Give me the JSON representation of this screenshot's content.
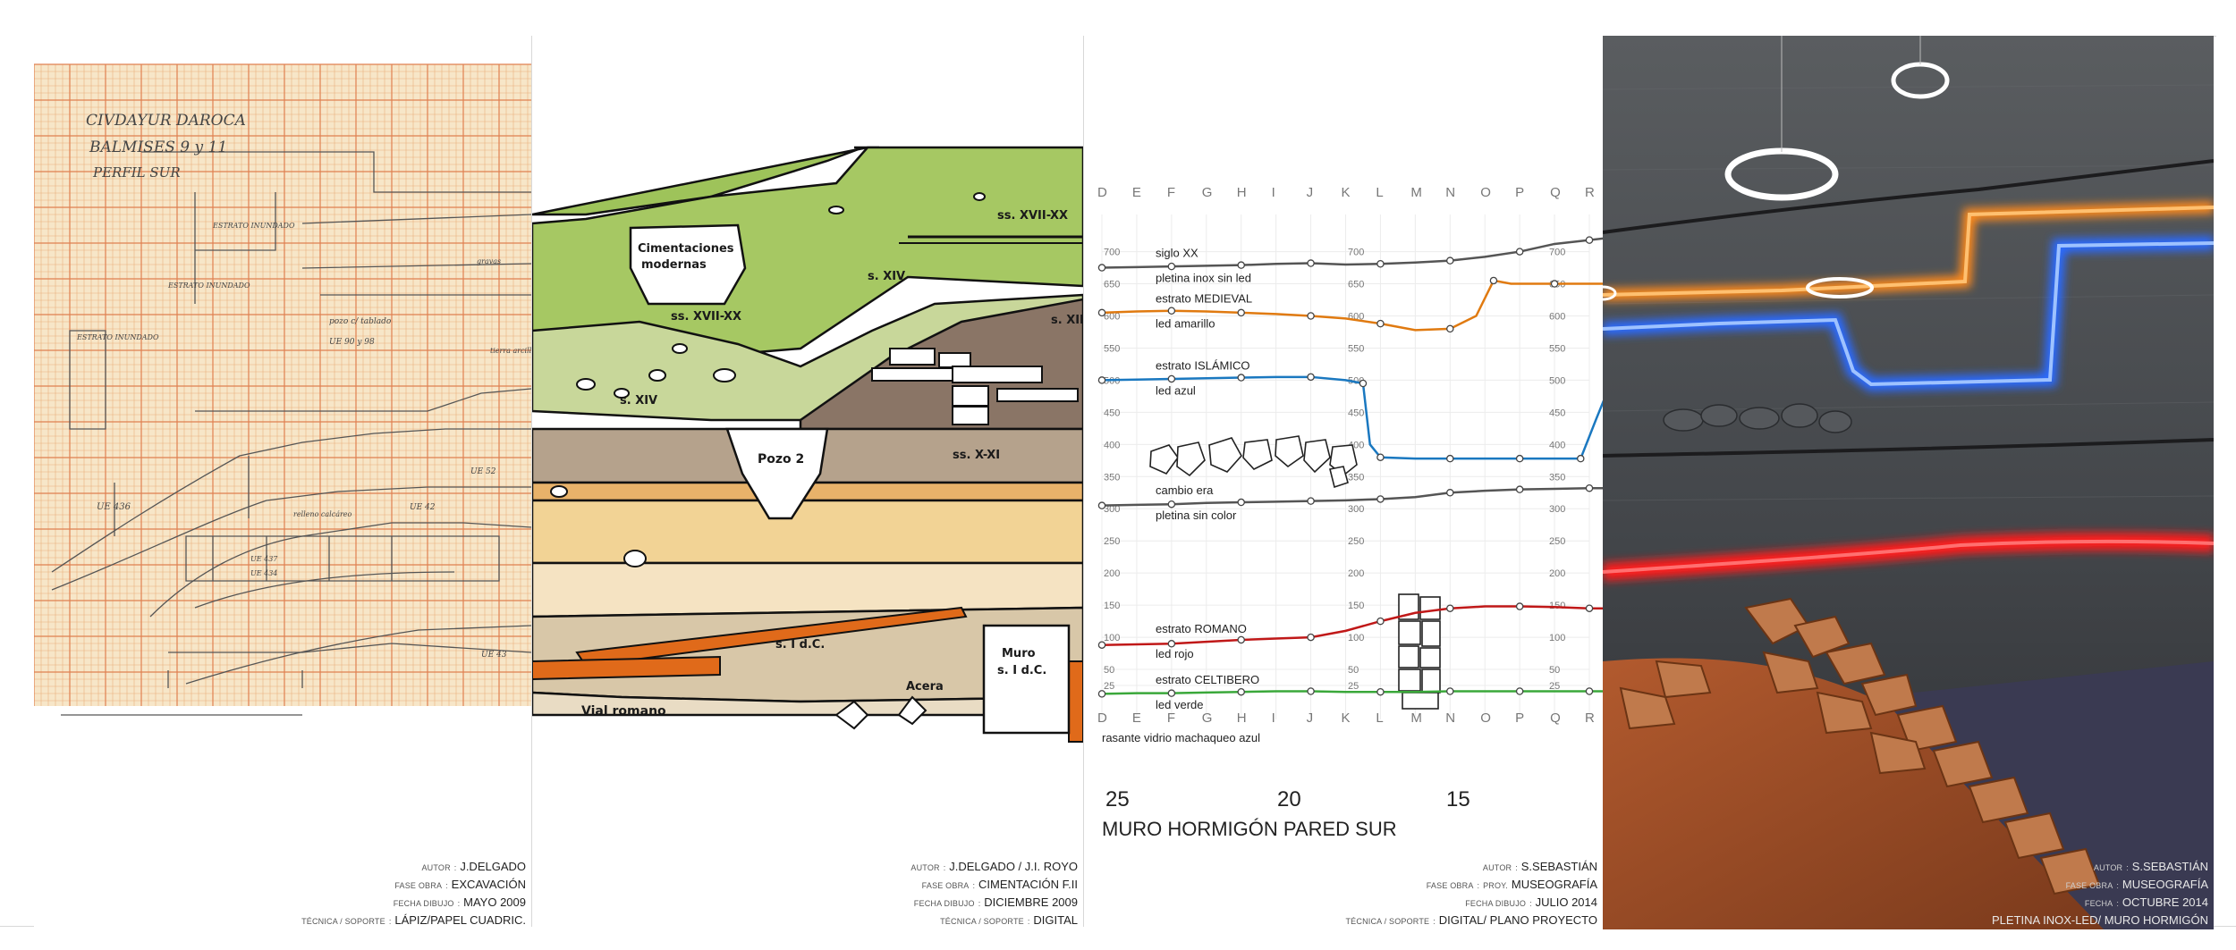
{
  "panels": [
    {
      "id": "sketch",
      "notes": [
        "CIVDAYUR DAROCA",
        "BALMISES 9 y 11",
        "PERFIL SUR"
      ],
      "sketch_labels": [
        "ESTRATO INUNDADO",
        "ESTRATO INUNDADO",
        "ESTRATO INUNDADO",
        "pozo c/ tablado",
        "UE 90 y 98",
        "UE 436",
        "UE 437",
        "UE 434",
        "gravas",
        "tierra arcillas",
        "relleno calcáreo",
        "UE 52",
        "UE 42",
        "UE 43"
      ],
      "credits": {
        "author_key": "AUTOR",
        "author": "J.DELGADO",
        "phase_key": "FASE OBRA",
        "phase": "EXCAVACIÓN",
        "date_key": "FECHA DIBUJO",
        "date": "MAYO 2009",
        "tech_key": "TÉCNICA / SOPORTE",
        "tech": "LÁPIZ/PAPEL CUADRIC."
      }
    },
    {
      "id": "strata",
      "labels": {
        "cimentaciones": "Cimentaciones modernas",
        "xvii_upper": "ss. XVII-XX",
        "xvii_lower": "ss. XVII-XX",
        "xiv_upper": "s. XIV",
        "xiv_lower": "s. XIV",
        "xii": "s. XII",
        "pozo": "Pozo 2",
        "x_xi": "ss. X-XI",
        "i_dc": "s. I d.C.",
        "muro": "Muro s. I d.C.",
        "acera": "Acera",
        "vial": "Vial romano"
      },
      "credits": {
        "author_key": "AUTOR",
        "author": "J.DELGADO / J.I. ROYO",
        "phase_key": "FASE OBRA",
        "phase": "CIMENTACIÓN F.II",
        "date_key": "FECHA DIBUJO",
        "date": "DICIEMBRE 2009",
        "tech_key": "TÉCNICA / SOPORTE",
        "tech": "DIGITAL"
      }
    },
    {
      "id": "chart",
      "big_ticks": [
        "25",
        "20",
        "15"
      ],
      "wall_title": "MURO HORMIGÓN PARED SUR",
      "bottom_note": "rasante vidrio machaqueo azul",
      "credits": {
        "author_key": "AUTOR",
        "author": "S.SEBASTIÁN",
        "phase_key": "FASE OBRA",
        "phase_prefix": "PROY.",
        "phase": "MUSEOGRAFÍA",
        "date_key": "FECHA DIBUJO",
        "date": "JULIO 2014",
        "tech_key": "TÉCNICA / SOPORTE",
        "tech": "DIGITAL/ PLANO PROYECTO"
      }
    },
    {
      "id": "photo",
      "credits": {
        "author_key": "AUTOR",
        "author": "S.SEBASTIÁN",
        "phase_key": "FASE OBRA",
        "phase": "MUSEOGRAFÍA",
        "date_key": "FECHA",
        "date": "OCTUBRE 2014",
        "tech": "PLETINA INOX-LED/ MURO HORMIGÓN"
      }
    }
  ],
  "chart_data": {
    "type": "line",
    "x_categories": [
      "D",
      "E",
      "F",
      "G",
      "H",
      "I",
      "J",
      "K",
      "L",
      "M",
      "N",
      "O",
      "P",
      "Q",
      "R"
    ],
    "y_ticks": [
      25,
      50,
      100,
      150,
      200,
      250,
      300,
      350,
      400,
      450,
      500,
      550,
      600,
      650,
      700
    ],
    "ylim": [
      0,
      730
    ],
    "series": [
      {
        "name": "siglo XX",
        "subtitle": "pletina inox sin led",
        "color": "#555555",
        "x": [
          0,
          2,
          4,
          6,
          8,
          10,
          12,
          14,
          16,
          18,
          20,
          22,
          24,
          26,
          28,
          29.3
        ],
        "values": [
          675,
          676,
          677,
          678,
          679,
          681,
          682,
          680,
          681,
          683,
          686,
          692,
          700,
          712,
          718,
          722
        ]
      },
      {
        "name": "estrato MEDIEVAL",
        "subtitle": "led amarillo",
        "color": "#e07a10",
        "x": [
          0,
          2,
          4,
          6,
          8,
          10,
          12,
          14,
          16,
          18,
          20,
          21.5,
          22.5,
          23.5,
          26,
          29.3
        ],
        "values": [
          605,
          607,
          608,
          607,
          605,
          603,
          600,
          596,
          588,
          578,
          580,
          600,
          655,
          650,
          650,
          650
        ]
      },
      {
        "name": "estrato ISLÁMICO",
        "subtitle": "led azul",
        "color": "#1a78c0",
        "x": [
          0,
          2,
          4,
          6,
          8,
          10,
          12,
          14,
          15,
          15.4,
          16,
          18,
          20,
          22,
          24,
          26,
          27.5,
          28.4,
          29.3
        ],
        "values": [
          500,
          501,
          502,
          503,
          504,
          505,
          505,
          500,
          495,
          400,
          380,
          378,
          378,
          378,
          378,
          378,
          378,
          440,
          500
        ]
      },
      {
        "name": "cambio era",
        "subtitle": "pletina sin color",
        "color": "#555555",
        "x": [
          0,
          2,
          4,
          6,
          8,
          10,
          12,
          14,
          16,
          18,
          20,
          22,
          24,
          26,
          28,
          29.3
        ],
        "values": [
          305,
          306,
          307,
          309,
          310,
          311,
          312,
          313,
          315,
          318,
          325,
          328,
          330,
          331,
          332,
          332
        ]
      },
      {
        "name": "estrato ROMANO",
        "subtitle": "led rojo",
        "color": "#c01818",
        "x": [
          0,
          2,
          4,
          6,
          8,
          10,
          12,
          14,
          16,
          18,
          20,
          22,
          24,
          26,
          28,
          29.3
        ],
        "values": [
          88,
          89,
          90,
          93,
          96,
          98,
          100,
          110,
          125,
          138,
          145,
          148,
          148,
          147,
          145,
          145
        ]
      },
      {
        "name": "estrato CELTIBERO",
        "subtitle": "led verde",
        "color": "#3aa83a",
        "x": [
          0,
          2,
          4,
          6,
          8,
          10,
          12,
          14,
          16,
          18,
          20,
          22,
          24,
          26,
          28,
          29.3
        ],
        "values": [
          12,
          13,
          13,
          14,
          15,
          16,
          16,
          15,
          15,
          15,
          16,
          16,
          16,
          16,
          16,
          16
        ]
      }
    ]
  }
}
